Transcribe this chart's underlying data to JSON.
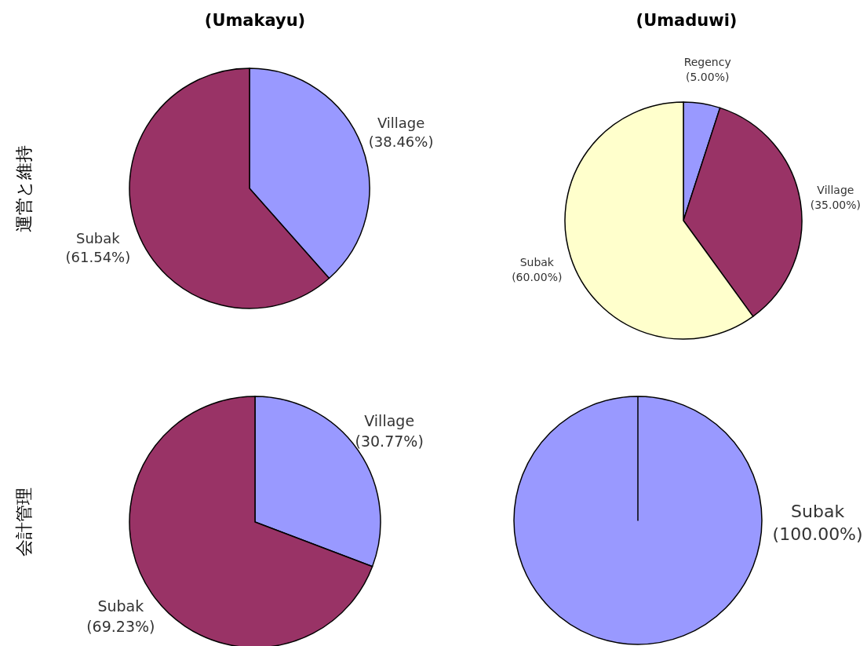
{
  "chart_data": [
    {
      "type": "pie",
      "title": "(Umakayu)",
      "ylabel": "運営と維持",
      "categories": [
        "Village",
        "Subak"
      ],
      "values": [
        38.46,
        61.54
      ],
      "value_labels": [
        "(38.46%)",
        "(61.54%)"
      ],
      "colors": [
        "#9999ff",
        "#993366"
      ]
    },
    {
      "type": "pie",
      "title": "(Umaduwi)",
      "categories": [
        "Regency",
        "Village",
        "Subak"
      ],
      "values": [
        5,
        35,
        60
      ],
      "value_labels": [
        "(5.00%)",
        "(35.00%)",
        "(60.00%)"
      ],
      "colors": [
        "#9999ff",
        "#993366",
        "#ffffcc"
      ]
    },
    {
      "type": "pie",
      "ylabel": "会計管理",
      "categories": [
        "Village",
        "Subak"
      ],
      "values": [
        30.77,
        69.23
      ],
      "value_labels": [
        "(30.77%)",
        "(69.23%)"
      ],
      "colors": [
        "#9999ff",
        "#993366"
      ]
    },
    {
      "type": "pie",
      "categories": [
        "Subak"
      ],
      "values": [
        100
      ],
      "value_labels": [
        "(100.00%)"
      ],
      "colors": [
        "#9999ff"
      ]
    }
  ]
}
